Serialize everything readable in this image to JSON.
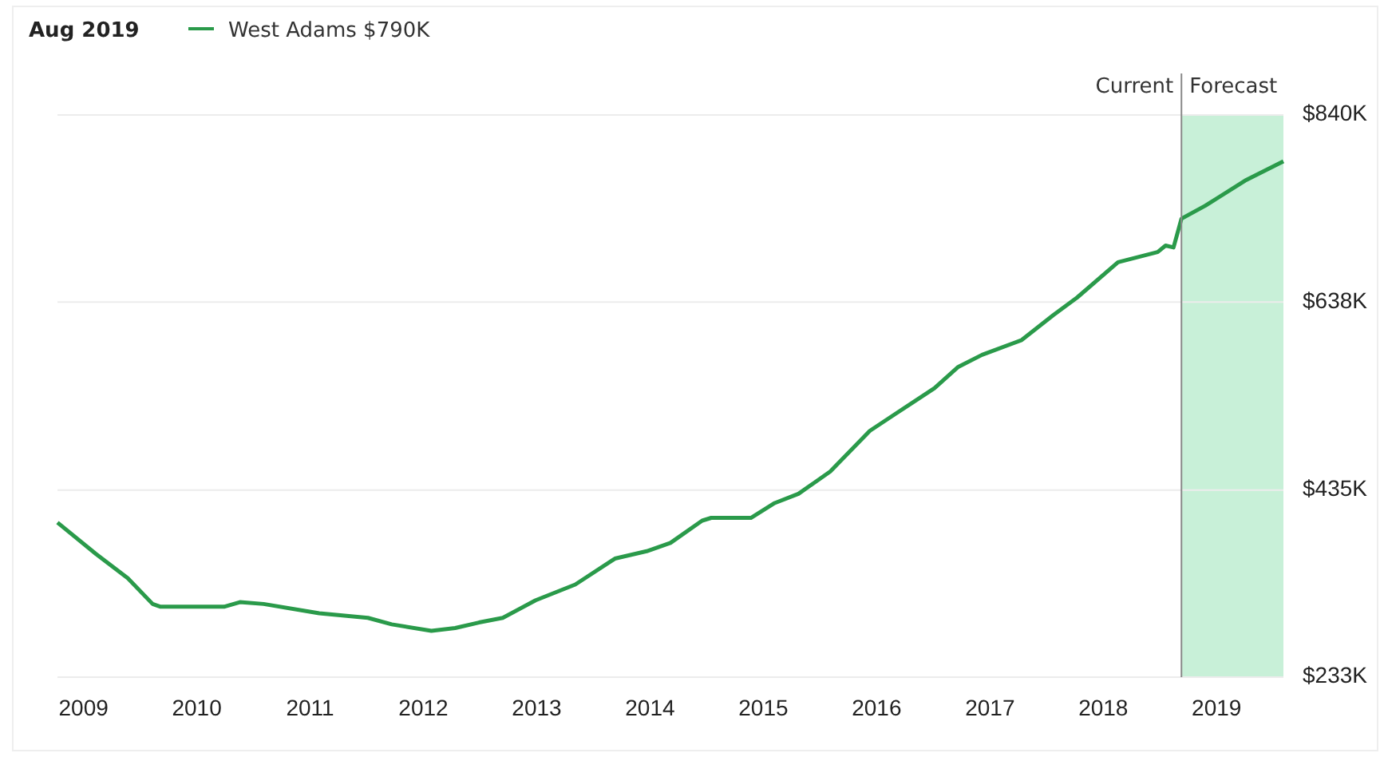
{
  "chart_data": {
    "type": "line",
    "title": "Aug 2019",
    "legend": "top left",
    "x": [
      2008.77,
      2009.11,
      2009.39,
      2009.61,
      2009.68,
      2010.24,
      2010.38,
      2010.59,
      2011.08,
      2011.51,
      2011.72,
      2012.07,
      2012.28,
      2012.49,
      2012.7,
      2012.99,
      2013.34,
      2013.69,
      2013.97,
      2014.18,
      2014.46,
      2014.54,
      2014.89,
      2015.1,
      2015.31,
      2015.59,
      2015.94,
      2016.15,
      2016.51,
      2016.72,
      2016.93,
      2017.28,
      2017.56,
      2017.77,
      2018.13,
      2018.48,
      2018.55,
      2018.62,
      2018.69,
      2018.9,
      2019.25,
      2019.59
    ],
    "series": [
      {
        "name": "West Adams $790K",
        "color": "#2a9a4a",
        "values": [
          400,
          366,
          340,
          312,
          309,
          309,
          314,
          312,
          302,
          297,
          290,
          283,
          286,
          292,
          297,
          316,
          333,
          361,
          369,
          378,
          402,
          405,
          405,
          421,
          431,
          455,
          499,
          516,
          545,
          568,
          581,
          597,
          624,
          643,
          681,
          692,
          699,
          697,
          728,
          742,
          769,
          790
        ]
      }
    ],
    "xlim": [
      2008.77,
      2019.59
    ],
    "xticks": [
      2009,
      2010,
      2011,
      2012,
      2013,
      2014,
      2015,
      2016,
      2017,
      2018,
      2019
    ],
    "ylim": [
      233,
      840
    ],
    "yticks": [
      {
        "value": 233,
        "label": "$233K"
      },
      {
        "value": 435,
        "label": "$435K"
      },
      {
        "value": 638,
        "label": "$638K"
      },
      {
        "value": 840,
        "label": "$840K"
      }
    ],
    "grid": "y",
    "line_style": "solid",
    "marker": "none",
    "ref_lines": [
      {
        "axis": "x",
        "value": 2018.69,
        "label": "Current",
        "color": "#888888"
      }
    ],
    "bands": [
      {
        "axis": "x",
        "from": 2018.69,
        "to": 2019.59,
        "label": "Forecast",
        "color": "#c8f0d8"
      }
    ]
  }
}
